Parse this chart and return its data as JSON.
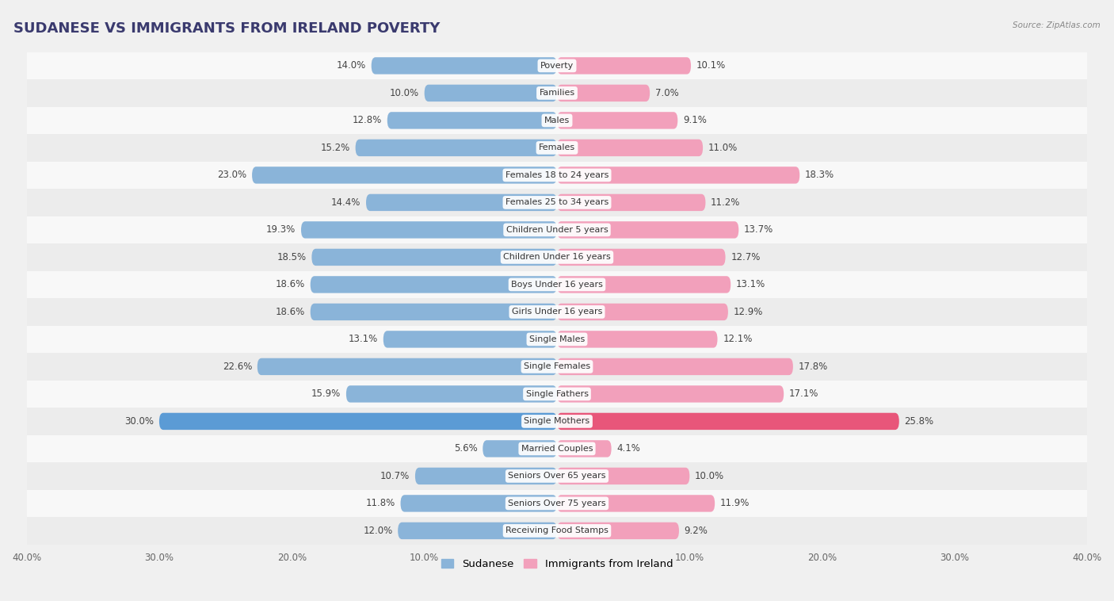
{
  "title": "SUDANESE VS IMMIGRANTS FROM IRELAND POVERTY",
  "source": "Source: ZipAtlas.com",
  "categories": [
    "Poverty",
    "Families",
    "Males",
    "Females",
    "Females 18 to 24 years",
    "Females 25 to 34 years",
    "Children Under 5 years",
    "Children Under 16 years",
    "Boys Under 16 years",
    "Girls Under 16 years",
    "Single Males",
    "Single Females",
    "Single Fathers",
    "Single Mothers",
    "Married Couples",
    "Seniors Over 65 years",
    "Seniors Over 75 years",
    "Receiving Food Stamps"
  ],
  "sudanese": [
    14.0,
    10.0,
    12.8,
    15.2,
    23.0,
    14.4,
    19.3,
    18.5,
    18.6,
    18.6,
    13.1,
    22.6,
    15.9,
    30.0,
    5.6,
    10.7,
    11.8,
    12.0
  ],
  "ireland": [
    10.1,
    7.0,
    9.1,
    11.0,
    18.3,
    11.2,
    13.7,
    12.7,
    13.1,
    12.9,
    12.1,
    17.8,
    17.1,
    25.8,
    4.1,
    10.0,
    11.9,
    9.2
  ],
  "sudanese_color": "#8ab4d9",
  "ireland_color": "#f2a0bb",
  "highlight_rows": [
    13
  ],
  "highlight_sudanese_color": "#5b9bd5",
  "highlight_ireland_color": "#e8567a",
  "background_color": "#f0f0f0",
  "row_bg_even": "#ececec",
  "row_bg_odd": "#f8f8f8",
  "xlim": 40.0,
  "bar_height": 0.62,
  "title_fontsize": 13,
  "label_fontsize": 8.5,
  "category_fontsize": 8.0,
  "legend_fontsize": 9.5,
  "axis_label_fontsize": 8.5
}
